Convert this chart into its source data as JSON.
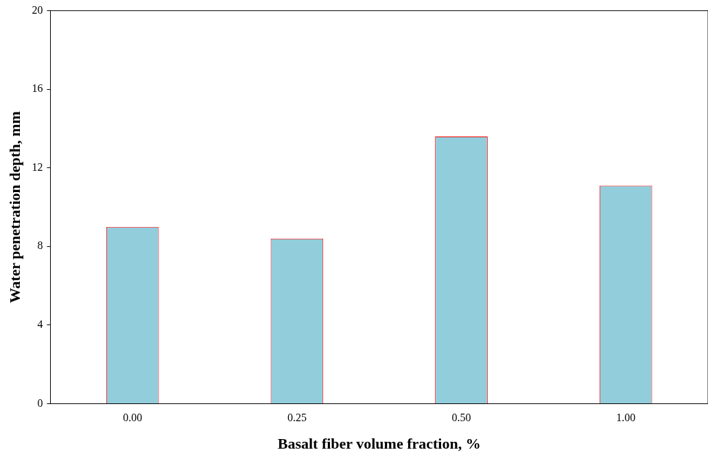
{
  "chart_data": {
    "type": "bar",
    "xlabel": "Basalt fiber volume fraction, %",
    "ylabel": "Water penetration depth, mm",
    "categories": [
      "0.00",
      "0.25",
      "0.50",
      "1.00"
    ],
    "series": [
      {
        "color": "#92cddc",
        "values": [
          9.0,
          8.4,
          13.6,
          11.1
        ]
      }
    ],
    "ylim": [
      0,
      20
    ],
    "yticks": [
      0,
      4,
      8,
      12,
      16,
      20
    ],
    "grid": false,
    "legend": false
  }
}
